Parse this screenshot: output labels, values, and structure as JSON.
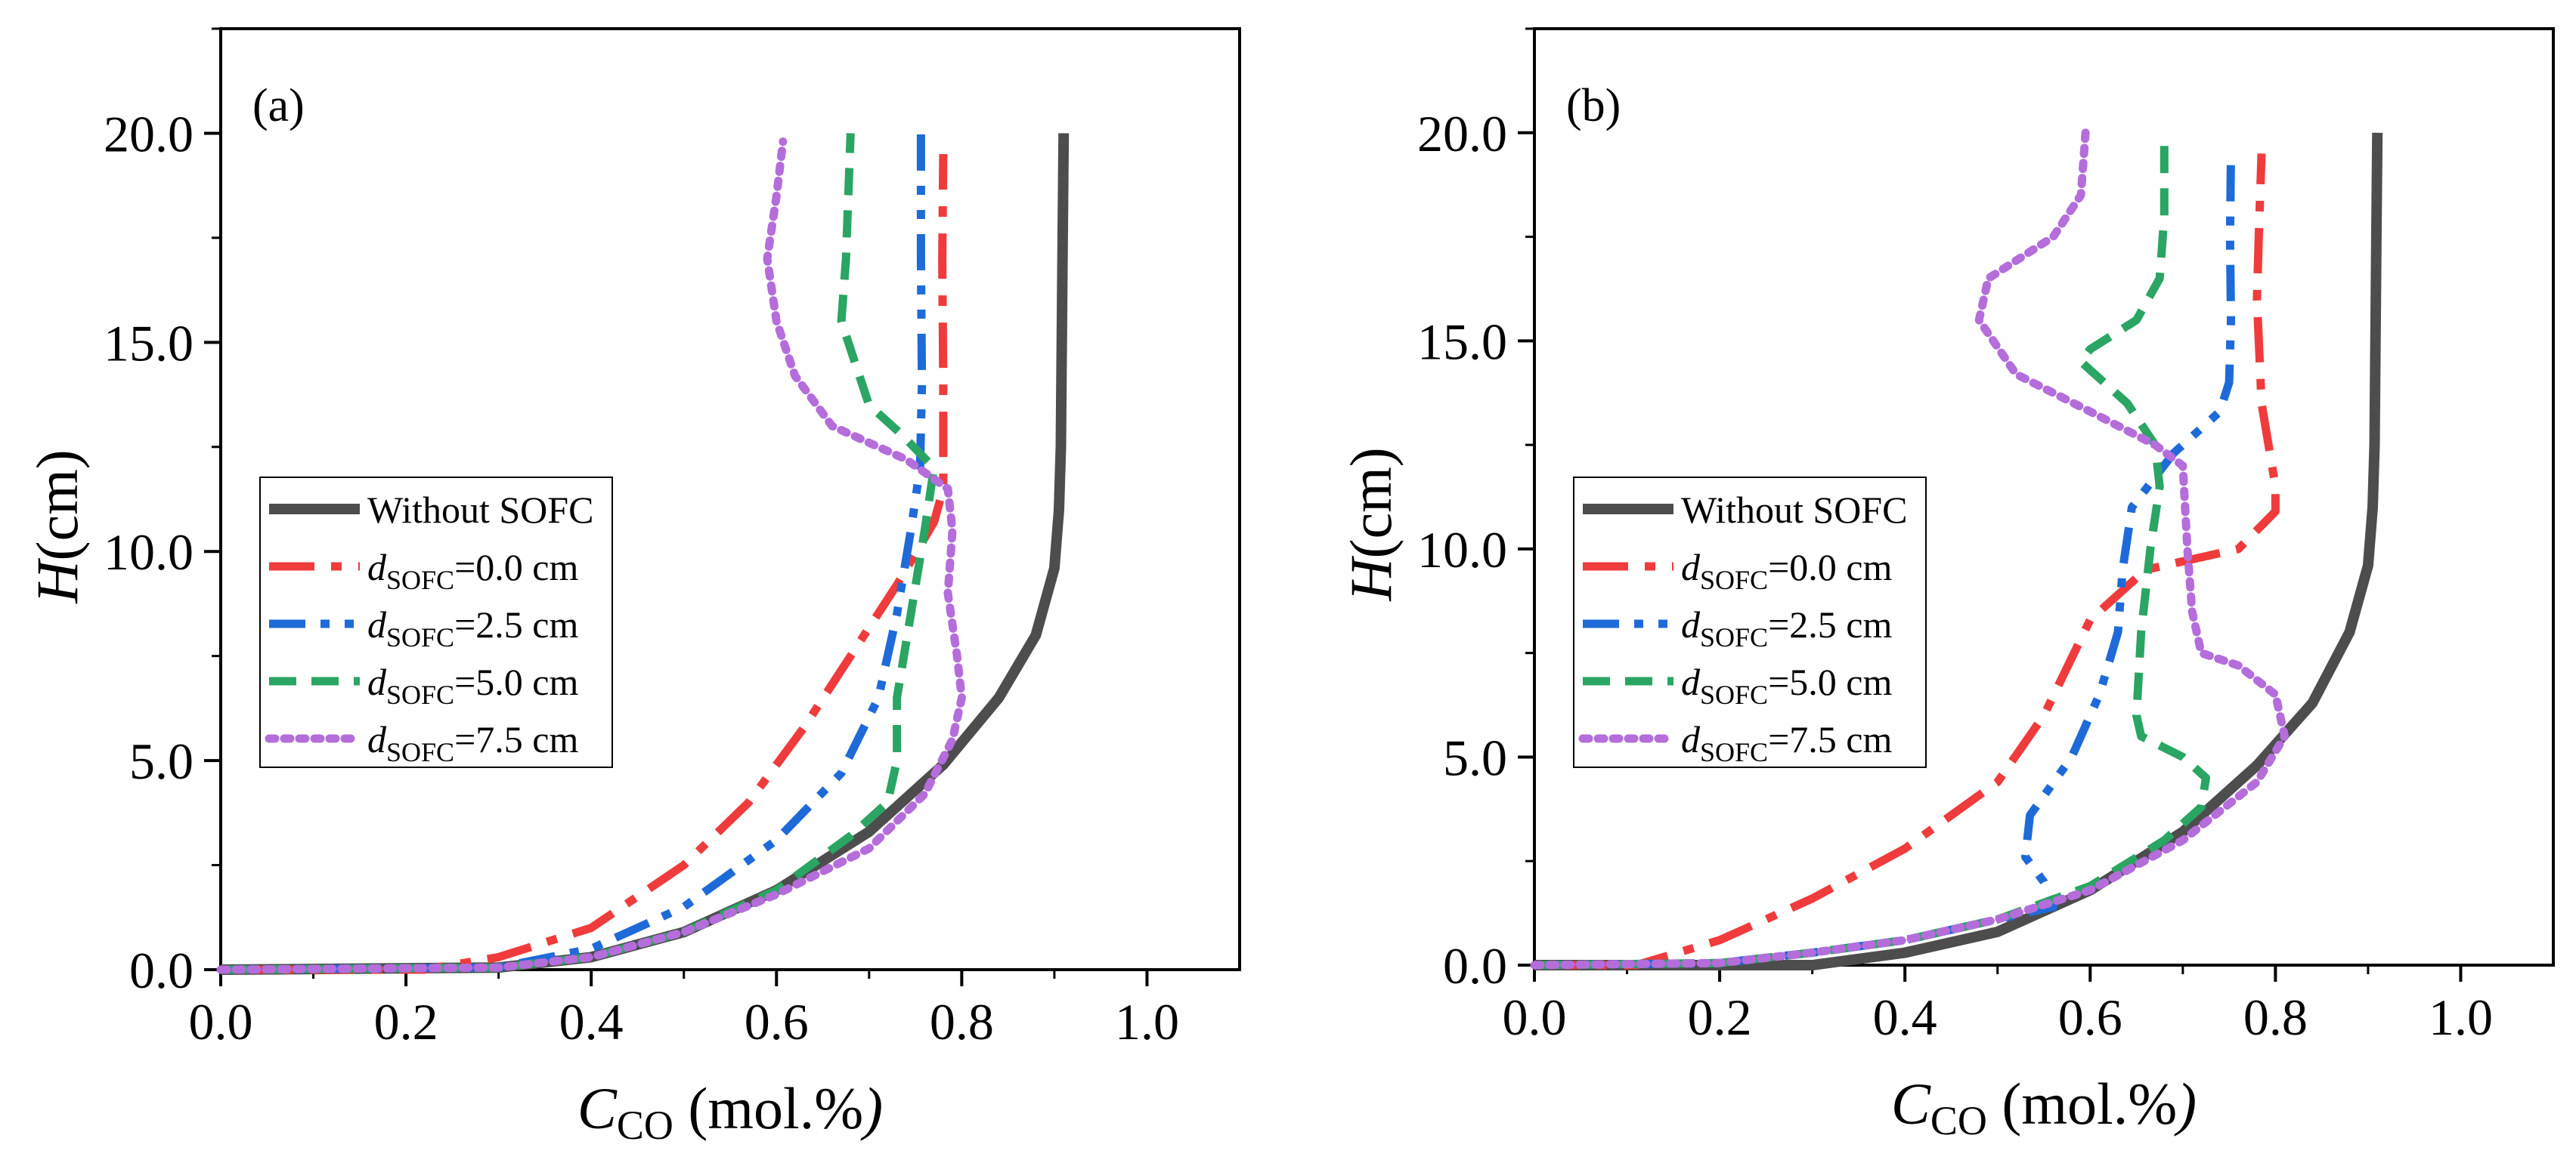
{
  "chart_data": [
    {
      "panel_label": "(a)",
      "type": "line",
      "xlabel": {
        "main": "C",
        "sub": "CO",
        "rest": " (mol.%",
        "tail": ")"
      },
      "ylabel": {
        "main": "H",
        "rest": "(cm)"
      },
      "xlim": [
        0.0,
        1.1
      ],
      "ylim": [
        0.0,
        22.5
      ],
      "xticks": [
        0.0,
        0.2,
        0.4,
        0.6,
        0.8,
        1.0
      ],
      "yticks": [
        0.0,
        5.0,
        10.0,
        15.0,
        20.0
      ],
      "legend_position": "center-left",
      "series": [
        {
          "name": {
            "text": "Without SOFC"
          },
          "color": "#4d4d4d",
          "dash": "solid",
          "points": [
            [
              0.0,
              0.0
            ],
            [
              0.3,
              0.05
            ],
            [
              0.4,
              0.3
            ],
            [
              0.5,
              0.9
            ],
            [
              0.6,
              1.9
            ],
            [
              0.7,
              3.3
            ],
            [
              0.78,
              4.9
            ],
            [
              0.84,
              6.5
            ],
            [
              0.88,
              8.0
            ],
            [
              0.9,
              9.6
            ],
            [
              0.905,
              11.0
            ],
            [
              0.907,
              12.5
            ],
            [
              0.908,
              15.0
            ],
            [
              0.909,
              17.5
            ],
            [
              0.91,
              20.0
            ]
          ]
        },
        {
          "name": {
            "d": "d",
            "sub": "SOFC",
            "rest": "=0.0 cm"
          },
          "color": "#ef3b3b",
          "dash": "dashdot",
          "points": [
            [
              0.0,
              0.0
            ],
            [
              0.22,
              0.0
            ],
            [
              0.3,
              0.3
            ],
            [
              0.4,
              1.0
            ],
            [
              0.5,
              2.5
            ],
            [
              0.57,
              4.0
            ],
            [
              0.63,
              5.8
            ],
            [
              0.68,
              7.5
            ],
            [
              0.73,
              9.2
            ],
            [
              0.77,
              10.7
            ],
            [
              0.78,
              11.5
            ],
            [
              0.78,
              14.0
            ],
            [
              0.779,
              17.0
            ],
            [
              0.78,
              19.5
            ]
          ]
        },
        {
          "name": {
            "d": "d",
            "sub": "SOFC",
            "rest": "=2.5 cm"
          },
          "color": "#1f6ad9",
          "dash": "dashdotdot",
          "points": [
            [
              0.0,
              0.0
            ],
            [
              0.3,
              0.05
            ],
            [
              0.4,
              0.5
            ],
            [
              0.5,
              1.5
            ],
            [
              0.6,
              3.1
            ],
            [
              0.67,
              4.7
            ],
            [
              0.71,
              6.5
            ],
            [
              0.73,
              8.5
            ],
            [
              0.745,
              10.5
            ],
            [
              0.755,
              12.0
            ],
            [
              0.757,
              14.0
            ],
            [
              0.756,
              17.0
            ],
            [
              0.756,
              20.0
            ]
          ]
        },
        {
          "name": {
            "d": "d",
            "sub": "SOFC",
            "rest": "=5.0 cm"
          },
          "color": "#2aa563",
          "dash": "dash",
          "points": [
            [
              0.0,
              0.0
            ],
            [
              0.3,
              0.05
            ],
            [
              0.4,
              0.3
            ],
            [
              0.5,
              0.9
            ],
            [
              0.6,
              1.9
            ],
            [
              0.68,
              3.2
            ],
            [
              0.72,
              4.0
            ],
            [
              0.73,
              5.0
            ],
            [
              0.73,
              6.5
            ],
            [
              0.745,
              8.5
            ],
            [
              0.76,
              10.5
            ],
            [
              0.77,
              12.0
            ],
            [
              0.735,
              12.8
            ],
            [
              0.7,
              13.5
            ],
            [
              0.67,
              15.5
            ],
            [
              0.675,
              17.0
            ],
            [
              0.68,
              20.0
            ]
          ]
        },
        {
          "name": {
            "d": "d",
            "sub": "SOFC",
            "rest": "=7.5 cm"
          },
          "color": "#b46ddb",
          "dash": "dot",
          "points": [
            [
              0.0,
              0.0
            ],
            [
              0.3,
              0.05
            ],
            [
              0.4,
              0.3
            ],
            [
              0.5,
              0.9
            ],
            [
              0.6,
              1.8
            ],
            [
              0.7,
              2.9
            ],
            [
              0.76,
              4.2
            ],
            [
              0.79,
              5.5
            ],
            [
              0.8,
              6.5
            ],
            [
              0.795,
              7.5
            ],
            [
              0.785,
              9.0
            ],
            [
              0.79,
              10.5
            ],
            [
              0.785,
              11.5
            ],
            [
              0.74,
              12.2
            ],
            [
              0.66,
              13.0
            ],
            [
              0.62,
              14.2
            ],
            [
              0.6,
              15.5
            ],
            [
              0.59,
              17.0
            ],
            [
              0.6,
              18.5
            ],
            [
              0.607,
              19.8
            ]
          ]
        }
      ]
    },
    {
      "panel_label": "(b)",
      "type": "line",
      "xlabel": {
        "main": "C",
        "sub": "CO",
        "rest": " (mol.%",
        "tail": ")"
      },
      "ylabel": {
        "main": "H",
        "rest": "(cm)"
      },
      "xlim": [
        0.0,
        1.1
      ],
      "ylim": [
        0.0,
        22.5
      ],
      "xticks": [
        0.0,
        0.2,
        0.4,
        0.6,
        0.8,
        1.0
      ],
      "yticks": [
        0.0,
        5.0,
        10.0,
        15.0,
        20.0
      ],
      "legend_position": "center-left",
      "series": [
        {
          "name": {
            "text": "Without SOFC"
          },
          "color": "#4d4d4d",
          "dash": "solid",
          "points": [
            [
              0.0,
              0.0
            ],
            [
              0.3,
              0.0
            ],
            [
              0.4,
              0.3
            ],
            [
              0.5,
              0.8
            ],
            [
              0.6,
              1.8
            ],
            [
              0.7,
              3.2
            ],
            [
              0.78,
              4.8
            ],
            [
              0.84,
              6.3
            ],
            [
              0.88,
              8.0
            ],
            [
              0.9,
              9.6
            ],
            [
              0.905,
              11.0
            ],
            [
              0.907,
              12.5
            ],
            [
              0.908,
              15.0
            ],
            [
              0.909,
              17.5
            ],
            [
              0.91,
              20.0
            ]
          ]
        },
        {
          "name": {
            "d": "d",
            "sub": "SOFC",
            "rest": "=0.0 cm"
          },
          "color": "#ef3b3b",
          "dash": "dashdot",
          "points": [
            [
              0.0,
              0.0
            ],
            [
              0.11,
              0.0
            ],
            [
              0.2,
              0.6
            ],
            [
              0.3,
              1.6
            ],
            [
              0.4,
              2.8
            ],
            [
              0.5,
              4.4
            ],
            [
              0.55,
              6.0
            ],
            [
              0.6,
              8.3
            ],
            [
              0.66,
              9.5
            ],
            [
              0.76,
              10.0
            ],
            [
              0.8,
              10.9
            ],
            [
              0.8,
              11.5
            ],
            [
              0.785,
              13.5
            ],
            [
              0.78,
              16.0
            ],
            [
              0.782,
              17.5
            ],
            [
              0.785,
              19.5
            ]
          ]
        },
        {
          "name": {
            "d": "d",
            "sub": "SOFC",
            "rest": "=2.5 cm"
          },
          "color": "#1f6ad9",
          "dash": "dashdotdot",
          "points": [
            [
              0.0,
              0.0
            ],
            [
              0.2,
              0.05
            ],
            [
              0.3,
              0.3
            ],
            [
              0.4,
              0.6
            ],
            [
              0.5,
              1.1
            ],
            [
              0.56,
              1.4
            ],
            [
              0.55,
              2.0
            ],
            [
              0.53,
              2.6
            ],
            [
              0.535,
              3.6
            ],
            [
              0.58,
              5.0
            ],
            [
              0.61,
              6.5
            ],
            [
              0.63,
              8.0
            ],
            [
              0.635,
              9.5
            ],
            [
              0.645,
              11.0
            ],
            [
              0.69,
              12.3
            ],
            [
              0.74,
              13.3
            ],
            [
              0.75,
              14.0
            ],
            [
              0.752,
              15.5
            ],
            [
              0.751,
              17.5
            ],
            [
              0.752,
              19.5
            ]
          ]
        },
        {
          "name": {
            "d": "d",
            "sub": "SOFC",
            "rest": "=5.0 cm"
          },
          "color": "#2aa563",
          "dash": "dash",
          "points": [
            [
              0.0,
              0.0
            ],
            [
              0.2,
              0.05
            ],
            [
              0.3,
              0.3
            ],
            [
              0.4,
              0.6
            ],
            [
              0.5,
              1.1
            ],
            [
              0.6,
              1.9
            ],
            [
              0.68,
              3.0
            ],
            [
              0.72,
              3.8
            ],
            [
              0.725,
              4.5
            ],
            [
              0.7,
              5.0
            ],
            [
              0.655,
              5.5
            ],
            [
              0.65,
              6.0
            ],
            [
              0.655,
              8.0
            ],
            [
              0.665,
              10.0
            ],
            [
              0.675,
              11.5
            ],
            [
              0.67,
              12.5
            ],
            [
              0.64,
              13.5
            ],
            [
              0.59,
              14.5
            ],
            [
              0.6,
              14.8
            ],
            [
              0.65,
              15.5
            ],
            [
              0.675,
              16.5
            ],
            [
              0.68,
              18.0
            ],
            [
              0.68,
              20.0
            ]
          ]
        },
        {
          "name": {
            "d": "d",
            "sub": "SOFC",
            "rest": "=7.5 cm"
          },
          "color": "#b46ddb",
          "dash": "dot",
          "points": [
            [
              0.0,
              0.0
            ],
            [
              0.2,
              0.05
            ],
            [
              0.3,
              0.3
            ],
            [
              0.4,
              0.6
            ],
            [
              0.5,
              1.1
            ],
            [
              0.6,
              1.8
            ],
            [
              0.7,
              3.0
            ],
            [
              0.78,
              4.4
            ],
            [
              0.81,
              5.5
            ],
            [
              0.8,
              6.5
            ],
            [
              0.76,
              7.2
            ],
            [
              0.72,
              7.5
            ],
            [
              0.71,
              8.5
            ],
            [
              0.705,
              10.0
            ],
            [
              0.7,
              12.0
            ],
            [
              0.67,
              12.5
            ],
            [
              0.6,
              13.3
            ],
            [
              0.52,
              14.2
            ],
            [
              0.48,
              15.5
            ],
            [
              0.49,
              16.5
            ],
            [
              0.56,
              17.5
            ],
            [
              0.59,
              18.5
            ],
            [
              0.595,
              20.0
            ]
          ]
        }
      ]
    }
  ]
}
